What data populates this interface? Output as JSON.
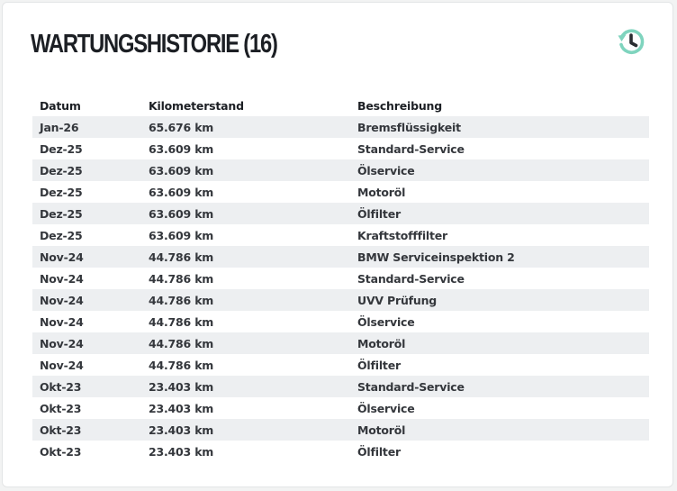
{
  "header": {
    "title": "WARTUNGSHISTORIE (16)",
    "history_icon": "history-clock-icon",
    "accent_color": "#7fd4be"
  },
  "table": {
    "columns": [
      "Datum",
      "Kilometerstand",
      "Beschreibung"
    ],
    "rows": [
      [
        "Jan-26",
        "65.676 km",
        "Bremsflüssigkeit"
      ],
      [
        "Dez-25",
        "63.609 km",
        "Standard-Service"
      ],
      [
        "Dez-25",
        "63.609 km",
        "Ölservice"
      ],
      [
        "Dez-25",
        "63.609 km",
        "Motoröl"
      ],
      [
        "Dez-25",
        "63.609 km",
        "Ölfilter"
      ],
      [
        "Dez-25",
        "63.609 km",
        "Kraftstofffilter"
      ],
      [
        "Nov-24",
        "44.786 km",
        "BMW Serviceinspektion 2"
      ],
      [
        "Nov-24",
        "44.786 km",
        "Standard-Service"
      ],
      [
        "Nov-24",
        "44.786 km",
        "UVV Prüfung"
      ],
      [
        "Nov-24",
        "44.786 km",
        "Ölservice"
      ],
      [
        "Nov-24",
        "44.786 km",
        "Motoröl"
      ],
      [
        "Nov-24",
        "44.786 km",
        "Ölfilter"
      ],
      [
        "Okt-23",
        "23.403 km",
        "Standard-Service"
      ],
      [
        "Okt-23",
        "23.403 km",
        "Ölservice"
      ],
      [
        "Okt-23",
        "23.403 km",
        "Motoröl"
      ],
      [
        "Okt-23",
        "23.403 km",
        "Ölfilter"
      ]
    ]
  }
}
